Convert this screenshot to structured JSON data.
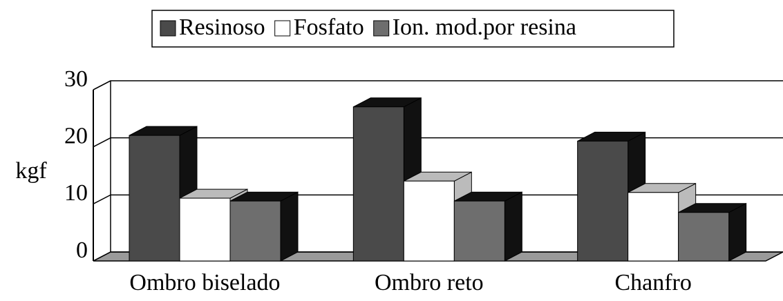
{
  "chart_data": {
    "type": "bar3d",
    "ylabel": "kgf",
    "categories": [
      "Ombro biselado",
      "Ombro reto",
      "Chanfro"
    ],
    "series": [
      {
        "name": "Resinoso",
        "color": "#4a4a4a",
        "values": [
          22,
          27,
          21
        ]
      },
      {
        "name": "Fosfato",
        "color": "#ffffff",
        "values": [
          11,
          14,
          12
        ]
      },
      {
        "name": "Ion. mod.por resina",
        "color": "#6e6e6e",
        "values": [
          10.5,
          10.5,
          8.5
        ]
      }
    ],
    "ylim": [
      0,
      30
    ],
    "yticks": [
      0,
      10,
      20,
      30
    ],
    "grid": true,
    "legend": "top"
  }
}
